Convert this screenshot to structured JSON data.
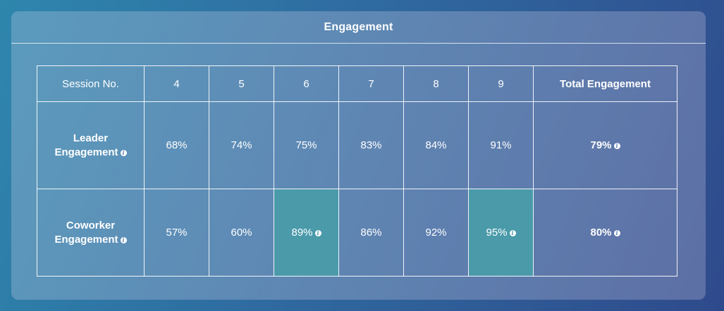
{
  "card": {
    "title": "Engagement"
  },
  "table": {
    "header": [
      "Session No.",
      "4",
      "5",
      "6",
      "7",
      "8",
      "9",
      "Total Engagement"
    ],
    "rows": [
      {
        "label_line1": "Leader",
        "label_line2": "Engagement",
        "values": [
          "68%",
          "74%",
          "75%",
          "83%",
          "84%",
          "91%"
        ],
        "total": "79%"
      },
      {
        "label_line1": "Coworker",
        "label_line2": "Engagement",
        "values": [
          "57%",
          "60%",
          "89%",
          "86%",
          "92%",
          "95%"
        ],
        "total": "80%"
      }
    ]
  },
  "icons": {
    "info": "info-icon",
    "info_glyph": "i"
  },
  "colors": {
    "highlight_cell": "#4a9aaa",
    "card_bg": "#5f86b3",
    "page_bg": "#2f6aa0"
  }
}
